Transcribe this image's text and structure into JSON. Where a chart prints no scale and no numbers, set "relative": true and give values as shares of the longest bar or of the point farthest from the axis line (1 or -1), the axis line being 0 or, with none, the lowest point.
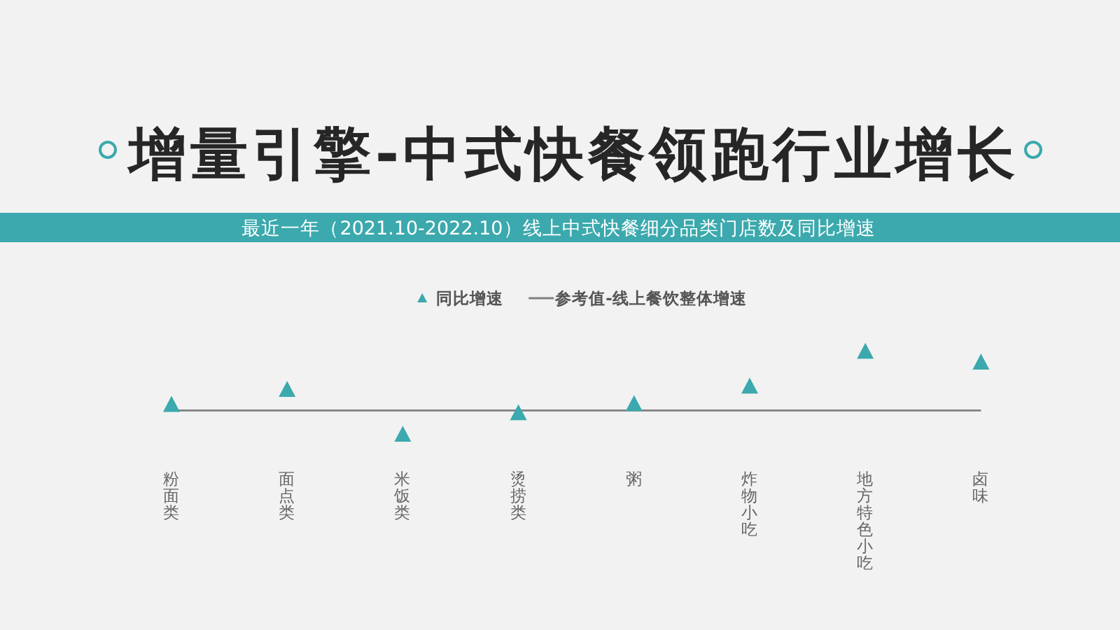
{
  "chart_data": {
    "type": "scatter",
    "title": "增量引擎-中式快餐领跑行业增长",
    "subtitle": "最近一年（2021.10-2022.10）线上中式快餐细分品类门店数及同比增速",
    "categories": [
      "粉面类",
      "面点类",
      "米饭类",
      "烫捞类",
      "粥",
      "炸物小吃",
      "地方特色小吃",
      "卤味"
    ],
    "series": [
      {
        "name": "同比增速",
        "color": "#3ba9ad",
        "values": [
          0.36,
          0.54,
          0,
          0.26,
          0.37,
          0.58,
          1,
          0.87
        ]
      }
    ],
    "relative": true,
    "marker": "triangle",
    "legend": "top",
    "ref_lines": [
      {
        "axis": "y",
        "value": 0.29,
        "label": "参考值-线上餐饮整体增速",
        "color": "#808080"
      }
    ]
  }
}
